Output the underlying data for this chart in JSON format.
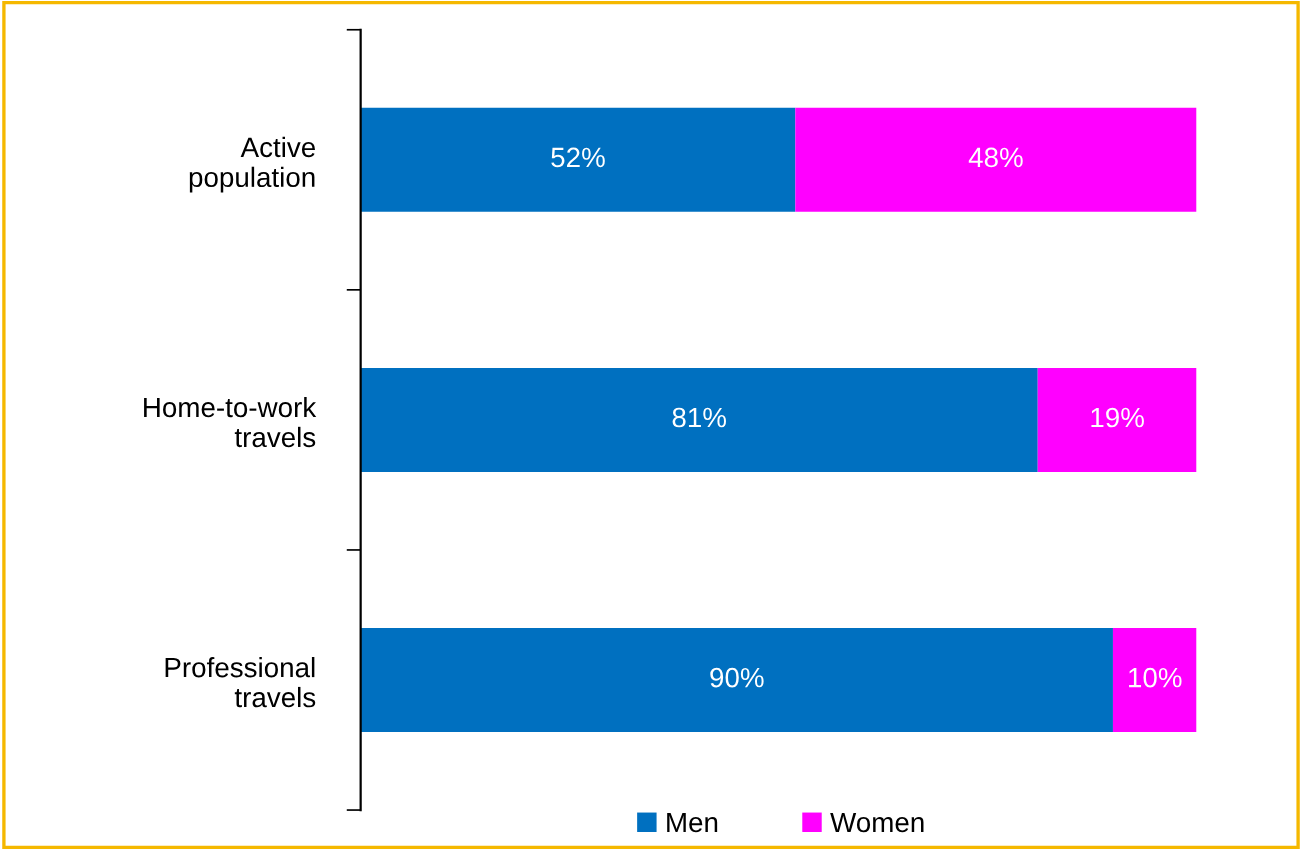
{
  "chart_data": {
    "type": "bar",
    "orientation": "horizontal",
    "stacked": true,
    "categories": [
      "Active\npopulation",
      "Home-to-work\ntravels",
      "Professional\ntravels"
    ],
    "series": [
      {
        "name": "Men",
        "color": "#0070c0",
        "values": [
          52,
          81,
          90
        ],
        "value_labels": [
          "52%",
          "81%",
          "90%"
        ]
      },
      {
        "name": "Women",
        "color": "#ff00ff",
        "values": [
          48,
          19,
          10
        ],
        "value_labels": [
          "48%",
          "19%",
          "10%"
        ]
      }
    ],
    "legend": "bottom",
    "grid": false
  }
}
